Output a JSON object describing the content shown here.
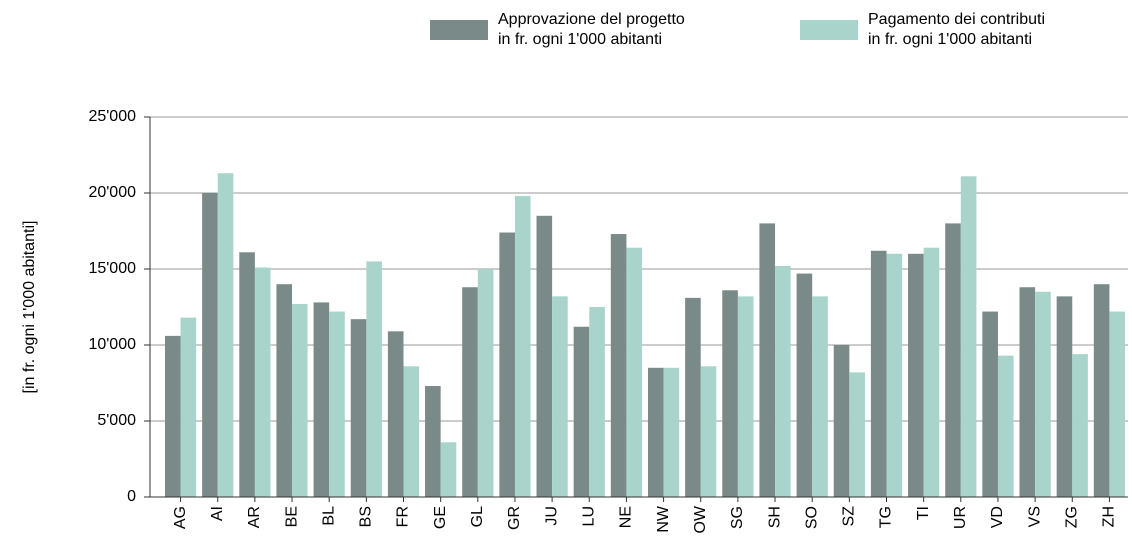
{
  "chart_data": {
    "type": "bar",
    "ylabel": "[in fr. ogni 1'000 abitanti]",
    "categories": [
      "AG",
      "AI",
      "AR",
      "BE",
      "BL",
      "BS",
      "FR",
      "GE",
      "GL",
      "GR",
      "JU",
      "LU",
      "NE",
      "NW",
      "OW",
      "SG",
      "SH",
      "SO",
      "SZ",
      "TG",
      "TI",
      "UR",
      "VD",
      "VS",
      "ZG",
      "ZH"
    ],
    "series": [
      {
        "name": "Approvazione del progetto\nin fr. ogni 1'000 abitanti",
        "color": "#7a8a88",
        "values": [
          10600,
          20000,
          16100,
          14000,
          12800,
          11700,
          10900,
          7300,
          13800,
          17400,
          18500,
          11200,
          17300,
          8500,
          13100,
          13600,
          18000,
          14700,
          10000,
          16200,
          16000,
          18000,
          12200,
          13800,
          13200,
          14000
        ]
      },
      {
        "name": "Pagamento dei contributi\nin fr. ogni 1'000 abitanti",
        "color": "#a8d4cc",
        "values": [
          11800,
          21300,
          15100,
          12700,
          12200,
          15500,
          8600,
          3600,
          15000,
          19800,
          13200,
          12500,
          16400,
          8500,
          8600,
          13200,
          15200,
          13200,
          8200,
          16000,
          16400,
          21100,
          9300,
          13500,
          9400,
          12200
        ]
      }
    ],
    "ylim": [
      0,
      25000
    ],
    "yticks": [
      0,
      {
        "value": 5000,
        "label": "5'000"
      },
      {
        "value": 10000,
        "label": "10'000"
      },
      {
        "value": 15000,
        "label": "15'000"
      },
      {
        "value": 20000,
        "label": "20'000"
      },
      {
        "value": 25000,
        "label": "25'000"
      }
    ],
    "grid": true
  }
}
